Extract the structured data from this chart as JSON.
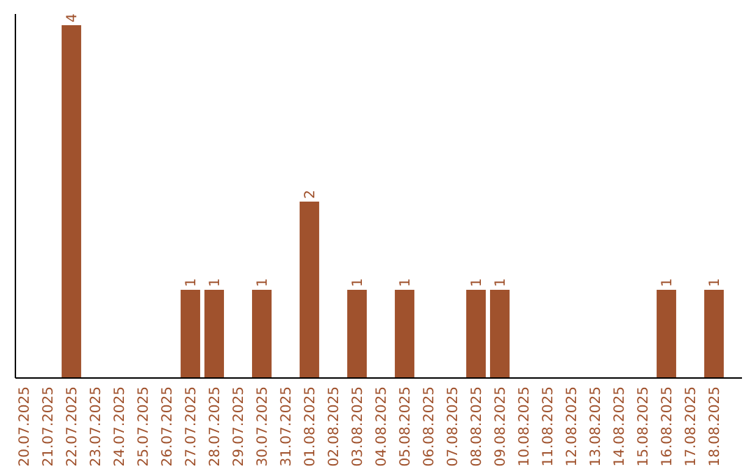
{
  "chart_data": {
    "type": "bar",
    "categories": [
      "20.07.2025",
      "21.07.2025",
      "22.07.2025",
      "23.07.2025",
      "24.07.2025",
      "25.07.2025",
      "26.07.2025",
      "27.07.2025",
      "28.07.2025",
      "29.07.2025",
      "30.07.2025",
      "31.07.2025",
      "01.08.2025",
      "02.08.2025",
      "03.08.2025",
      "04.08.2025",
      "05.08.2025",
      "06.08.2025",
      "07.08.2025",
      "08.08.2025",
      "09.08.2025",
      "10.08.2025",
      "11.08.2025",
      "12.08.2025",
      "13.08.2025",
      "14.08.2025",
      "15.08.2025",
      "16.08.2025",
      "17.08.2025",
      "18.08.2025"
    ],
    "values": [
      0,
      0,
      4,
      0,
      0,
      0,
      0,
      1,
      1,
      0,
      1,
      0,
      2,
      0,
      1,
      0,
      1,
      0,
      0,
      1,
      1,
      0,
      0,
      0,
      0,
      0,
      0,
      1,
      0,
      1
    ],
    "value_labels": [
      null,
      null,
      "4",
      null,
      null,
      null,
      null,
      "1",
      "1",
      null,
      "1",
      null,
      "2",
      null,
      "1",
      null,
      "1",
      null,
      null,
      "1",
      "1",
      null,
      null,
      null,
      null,
      null,
      null,
      "1",
      null,
      "1"
    ],
    "color": "#a0522d",
    "ylim": [
      0,
      4
    ],
    "tick_labels": "x"
  }
}
